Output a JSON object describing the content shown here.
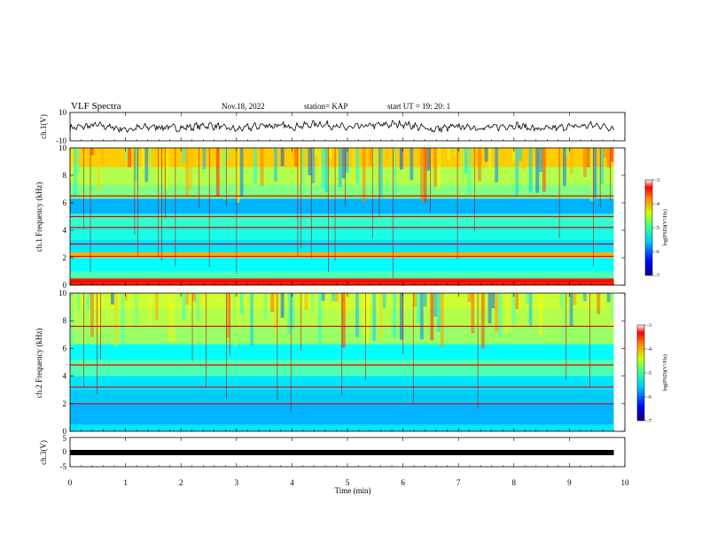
{
  "header": {
    "title": "VLF Spectra",
    "date": "Nov.18, 2022",
    "station": "station= KAP",
    "start": "start  UT  =   19: 20: 1"
  },
  "chart_data": [
    {
      "type": "line",
      "panel": "ch1-waveform",
      "ylabel": "ch.1(V)",
      "ylim": [
        -10,
        10
      ],
      "yticks": [
        "10",
        "-10"
      ],
      "xlim": [
        0,
        10
      ],
      "x": [
        0,
        0.5,
        1,
        1.5,
        2,
        2.5,
        3,
        3.5,
        4,
        4.5,
        5,
        5.5,
        6,
        6.5,
        7,
        7.5,
        8,
        8.5,
        9,
        9.5,
        9.8
      ],
      "y": [
        -1,
        1,
        -2,
        0,
        -1,
        1,
        -2,
        1,
        0,
        2,
        -1,
        1,
        2,
        -2,
        0,
        -1,
        1,
        -2,
        0,
        1,
        -1
      ]
    },
    {
      "type": "heatmap",
      "panel": "ch1-spectrogram",
      "ylabel": "ch.1\nFrequency (kHz)",
      "ylim": [
        0,
        10
      ],
      "yticks": [
        "0",
        "2",
        "4",
        "6",
        "8",
        "10"
      ],
      "xlim": [
        0,
        10
      ],
      "data_extent_min": 9.8,
      "colorbar_label": "log(PSD)(V²/Hz)",
      "colorbar_range": [
        -7,
        -3
      ],
      "colorbar_ticks": [
        "-3",
        "-4",
        "-5",
        "-6",
        "-7"
      ],
      "bands": [
        {
          "f0": 0,
          "f1": 0.5,
          "level": -3.6
        },
        {
          "f0": 0.5,
          "f1": 1.0,
          "level": -5.2
        },
        {
          "f0": 1.0,
          "f1": 2.0,
          "level": -5.5
        },
        {
          "f0": 2.0,
          "f1": 2.4,
          "level": -4.2
        },
        {
          "f0": 2.4,
          "f1": 3.3,
          "level": -5.6
        },
        {
          "f0": 3.3,
          "f1": 4.3,
          "level": -5.4
        },
        {
          "f0": 4.3,
          "f1": 5.2,
          "level": -5.3
        },
        {
          "f0": 5.2,
          "f1": 6.3,
          "level": -5.8
        },
        {
          "f0": 6.3,
          "f1": 7.3,
          "level": -5.0
        },
        {
          "f0": 7.3,
          "f1": 8.6,
          "level": -4.8
        },
        {
          "f0": 8.6,
          "f1": 10,
          "level": -4.3
        }
      ],
      "lines_khz": [
        0.3,
        2.1,
        3.0,
        4.2,
        5.0,
        6.5
      ]
    },
    {
      "type": "heatmap",
      "panel": "ch2-spectrogram",
      "ylabel": "ch.2\nFrequency (kHz)",
      "ylim": [
        0,
        10
      ],
      "yticks": [
        "0",
        "2",
        "4",
        "6",
        "8",
        "10"
      ],
      "xlim": [
        0,
        10
      ],
      "data_extent_min": 9.8,
      "colorbar_label": "log(PSD)(V²/Hz)",
      "colorbar_range": [
        -7,
        -3
      ],
      "colorbar_ticks": [
        "-3",
        "-4",
        "-5",
        "-6",
        "-7"
      ],
      "bands": [
        {
          "f0": 0,
          "f1": 0.5,
          "level": -5.6
        },
        {
          "f0": 0.5,
          "f1": 2.0,
          "level": -5.8
        },
        {
          "f0": 2.0,
          "f1": 3.0,
          "level": -5.7
        },
        {
          "f0": 3.0,
          "f1": 4.0,
          "level": -5.6
        },
        {
          "f0": 4.0,
          "f1": 5.2,
          "level": -5.2
        },
        {
          "f0": 5.2,
          "f1": 6.3,
          "level": -5.5
        },
        {
          "f0": 6.3,
          "f1": 7.5,
          "level": -4.9
        },
        {
          "f0": 7.5,
          "f1": 8.8,
          "level": -4.8
        },
        {
          "f0": 8.8,
          "f1": 10,
          "level": -4.7
        }
      ],
      "lines_khz": [
        2.0,
        3.2,
        4.8,
        7.6
      ]
    },
    {
      "type": "line",
      "panel": "ch3-signal",
      "ylabel": "ch.3(V)",
      "ylim": [
        -5,
        5
      ],
      "yticks": [
        "5",
        "0",
        "-5"
      ],
      "xlim": [
        0,
        10
      ],
      "xlabel": "Time  (min)",
      "xticks": [
        "0",
        "1",
        "2",
        "3",
        "4",
        "5",
        "6",
        "7",
        "8",
        "9",
        "10"
      ],
      "x": [
        0,
        9.8
      ],
      "y": [
        0,
        0
      ]
    }
  ]
}
